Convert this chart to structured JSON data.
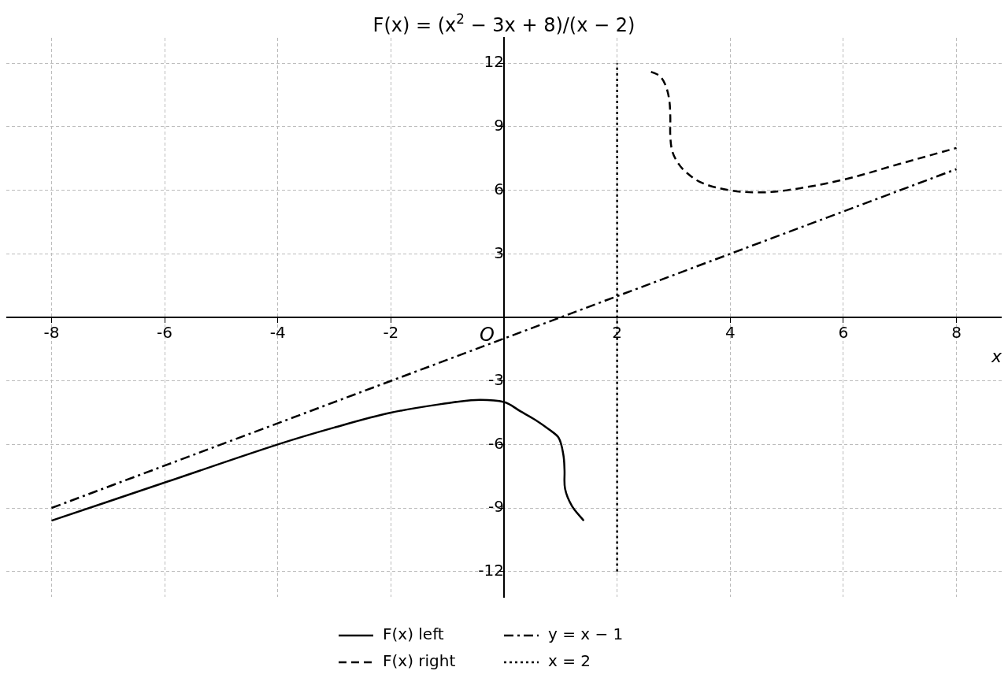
{
  "chart_data": {
    "type": "line",
    "title": "F(x) = (x$^{2}$ − 3x + 8)/(x − 2)",
    "xlabel": "x",
    "xlim": [
      -8.8,
      8.8
    ],
    "ylim": [
      -13.2,
      13.2
    ],
    "xticks": [
      -8,
      -6,
      -4,
      -2,
      {
        "value": 0,
        "label": null
      },
      2,
      4,
      6,
      8
    ],
    "yticks": [
      -12,
      -9,
      -6,
      -3,
      {
        "value": 0,
        "label": null
      },
      3,
      6,
      9,
      12
    ],
    "grid": true,
    "legend": "bottom",
    "marker": "none",
    "annotations": [
      "O"
    ],
    "series": [
      {
        "name": "F(x) left",
        "color": "#000000",
        "line_style": "solid",
        "x": [
          -8,
          -6,
          -4,
          -3,
          -2,
          -1,
          -0.5,
          0,
          0.3,
          0.56,
          0.8,
          0.97,
          1.05,
          1.07,
          1.08,
          1.2,
          1.41
        ],
        "values": [
          -9.6,
          -7.8,
          -6.0,
          -5.2,
          -4.5,
          -4.05,
          -3.9,
          -4.0,
          -4.45,
          -4.85,
          -5.3,
          -5.7,
          -6.5,
          -7.2,
          -8.1,
          -8.9,
          -9.6
        ]
      },
      {
        "name": "F(x) right",
        "color": "#000000",
        "line_style": "dashed",
        "x": [
          2.6,
          2.75,
          2.85,
          2.92,
          2.94,
          2.94,
          2.97,
          3.05,
          3.2,
          3.5,
          4,
          4.5,
          5,
          6,
          7,
          8
        ],
        "values": [
          11.6,
          11.4,
          11.0,
          10.3,
          9.5,
          8.6,
          7.9,
          7.4,
          6.9,
          6.35,
          6.0,
          5.9,
          6.0,
          6.5,
          7.25,
          8.0
        ]
      },
      {
        "name": "y = x − 1",
        "color": "#000000",
        "line_style": "dashdot",
        "x": [
          -8,
          8
        ],
        "values": [
          -9,
          7
        ]
      },
      {
        "name": "x = 2",
        "color": "#000000",
        "line_style": "dotted",
        "x": [
          2,
          2
        ],
        "values": [
          -12,
          12
        ]
      }
    ]
  }
}
